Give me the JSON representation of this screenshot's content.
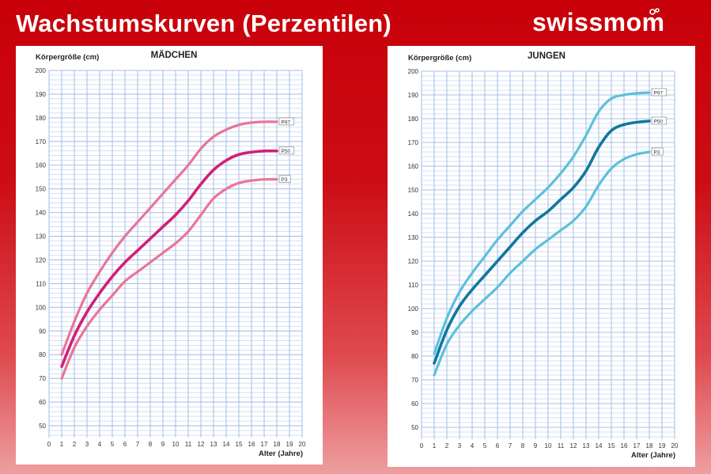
{
  "header": {
    "title": "Wachstumskurven (Perzentilen)",
    "brand": {
      "name": "swissmom",
      "logo_color": "#ffffff"
    }
  },
  "colors": {
    "background_top": "#c8000a",
    "background_bottom": "#ee9ea0",
    "grid": "#a9c2e6",
    "girls_outer": "#e87598",
    "girls_median": "#d11f78",
    "boys_outer": "#5bc0dc",
    "boys_median": "#12779e"
  },
  "chart_data": [
    {
      "type": "line",
      "title": "MÄDCHEN",
      "ylabel": "Körpergröße (cm)",
      "xlabel": "Alter (Jahre)",
      "xlim": [
        0,
        20
      ],
      "ylim": [
        45,
        200
      ],
      "x_ticks": [
        0,
        1,
        2,
        3,
        4,
        5,
        6,
        7,
        8,
        9,
        10,
        11,
        12,
        13,
        14,
        15,
        16,
        17,
        18,
        19,
        20
      ],
      "y_ticks": [
        50,
        60,
        70,
        80,
        90,
        100,
        110,
        120,
        130,
        140,
        150,
        160,
        170,
        180,
        190,
        200
      ],
      "grid": true,
      "series": [
        {
          "name": "P97",
          "color": "#e87598",
          "width": 3.2,
          "x": [
            1,
            2,
            3,
            4,
            5,
            6,
            7,
            8,
            9,
            10,
            11,
            12,
            13,
            14,
            15,
            16,
            17,
            18
          ],
          "y": [
            80,
            94,
            106,
            115,
            123,
            130,
            136,
            142,
            148,
            154,
            160,
            167,
            172,
            175,
            177,
            178,
            178.3,
            178.3
          ]
        },
        {
          "name": "P50",
          "color": "#d11f78",
          "width": 3.6,
          "x": [
            1,
            2,
            3,
            4,
            5,
            6,
            7,
            8,
            9,
            10,
            11,
            12,
            13,
            14,
            15,
            16,
            17,
            18
          ],
          "y": [
            75,
            88,
            98,
            106,
            113,
            119,
            124,
            129,
            134,
            139,
            145,
            152,
            158,
            162,
            164.5,
            165.5,
            166,
            166
          ]
        },
        {
          "name": "P3",
          "color": "#e87598",
          "width": 3.2,
          "x": [
            1,
            2,
            3,
            4,
            5,
            6,
            7,
            8,
            9,
            10,
            11,
            12,
            13,
            14,
            15,
            16,
            17,
            18
          ],
          "y": [
            70,
            83,
            92,
            99,
            105,
            111,
            115,
            119,
            123,
            127,
            132,
            139,
            146,
            150,
            152.5,
            153.5,
            154,
            154
          ]
        }
      ]
    },
    {
      "type": "line",
      "title": "JUNGEN",
      "ylabel": "Körpergröße (cm)",
      "xlabel": "Alter (Jahre)",
      "xlim": [
        0,
        20
      ],
      "ylim": [
        45,
        200
      ],
      "x_ticks": [
        0,
        1,
        2,
        3,
        4,
        5,
        6,
        7,
        8,
        9,
        10,
        11,
        12,
        13,
        14,
        15,
        16,
        17,
        18,
        19,
        20
      ],
      "y_ticks": [
        50,
        60,
        70,
        80,
        90,
        100,
        110,
        120,
        130,
        140,
        150,
        160,
        170,
        180,
        190,
        200
      ],
      "grid": true,
      "series": [
        {
          "name": "P97",
          "color": "#5bc0dc",
          "width": 3.2,
          "x": [
            1,
            2,
            3,
            4,
            5,
            6,
            7,
            8,
            9,
            10,
            11,
            12,
            13,
            14,
            15,
            16,
            17,
            18
          ],
          "y": [
            81,
            96,
            107,
            115,
            122,
            129,
            135,
            141,
            146,
            151,
            157,
            164,
            173,
            183,
            188.5,
            190,
            190.7,
            191
          ]
        },
        {
          "name": "P50",
          "color": "#12779e",
          "width": 3.6,
          "x": [
            1,
            2,
            3,
            4,
            5,
            6,
            7,
            8,
            9,
            10,
            11,
            12,
            13,
            14,
            15,
            16,
            17,
            18
          ],
          "y": [
            77,
            91,
            101,
            108,
            114,
            120,
            126,
            132,
            137,
            141,
            146,
            151,
            158,
            168,
            175,
            177.5,
            178.5,
            179
          ]
        },
        {
          "name": "P3",
          "color": "#5bc0dc",
          "width": 3.2,
          "x": [
            1,
            2,
            3,
            4,
            5,
            6,
            7,
            8,
            9,
            10,
            11,
            12,
            13,
            14,
            15,
            16,
            17,
            18
          ],
          "y": [
            72,
            85,
            93,
            99,
            104,
            109,
            115,
            120,
            125,
            129,
            133,
            137,
            143,
            152,
            159,
            163,
            165,
            166
          ]
        }
      ]
    }
  ]
}
